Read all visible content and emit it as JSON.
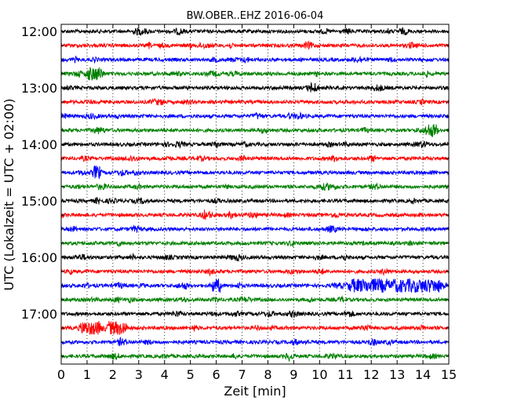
{
  "chart_data": {
    "type": "line",
    "title": "BW.OBER..EHZ 2016-06-04",
    "xlabel": "Zeit  [min]",
    "ylabel": "UTC (Lokalzeit = UTC + 02:00)",
    "xlim": [
      0,
      15
    ],
    "x_ticks": [
      0,
      1,
      2,
      3,
      4,
      5,
      6,
      7,
      8,
      9,
      10,
      11,
      12,
      13,
      14,
      15
    ],
    "y_tick_labels": [
      "12:00",
      "13:00",
      "14:00",
      "15:00",
      "16:00",
      "17:00"
    ],
    "trace_start_times": [
      "12:00",
      "12:15",
      "12:30",
      "12:45",
      "13:00",
      "13:15",
      "13:30",
      "13:45",
      "14:00",
      "14:15",
      "14:30",
      "14:45",
      "15:00",
      "15:15",
      "15:30",
      "15:45",
      "16:00",
      "16:15",
      "16:30",
      "16:45",
      "17:00",
      "17:15",
      "17:30",
      "17:45"
    ],
    "trace_colors": [
      "#000000",
      "#ff0000",
      "#0000ff",
      "#008000"
    ],
    "trace_count": 24,
    "grid_x": true,
    "grid_style": "dotted vertical lines at each minute",
    "events": [
      {
        "trace": 18,
        "start_min": 11.4,
        "end_min": 12.4,
        "level": 1.0
      },
      {
        "trace": 18,
        "start_min": 13.1,
        "end_min": 14.4,
        "level": 1.0
      },
      {
        "trace": 18,
        "start_min": 5.9,
        "end_min": 6.1,
        "level": 0.6
      },
      {
        "trace": 21,
        "start_min": 0.9,
        "end_min": 1.5,
        "level": 0.7
      },
      {
        "trace": 21,
        "start_min": 1.9,
        "end_min": 2.5,
        "level": 0.5
      },
      {
        "trace": 3,
        "start_min": 1.1,
        "end_min": 1.5,
        "level": 0.5
      },
      {
        "trace": 7,
        "start_min": 14.2,
        "end_min": 14.5,
        "level": 0.6
      },
      {
        "trace": 10,
        "start_min": 1.3,
        "end_min": 1.5,
        "level": 0.5
      }
    ]
  }
}
